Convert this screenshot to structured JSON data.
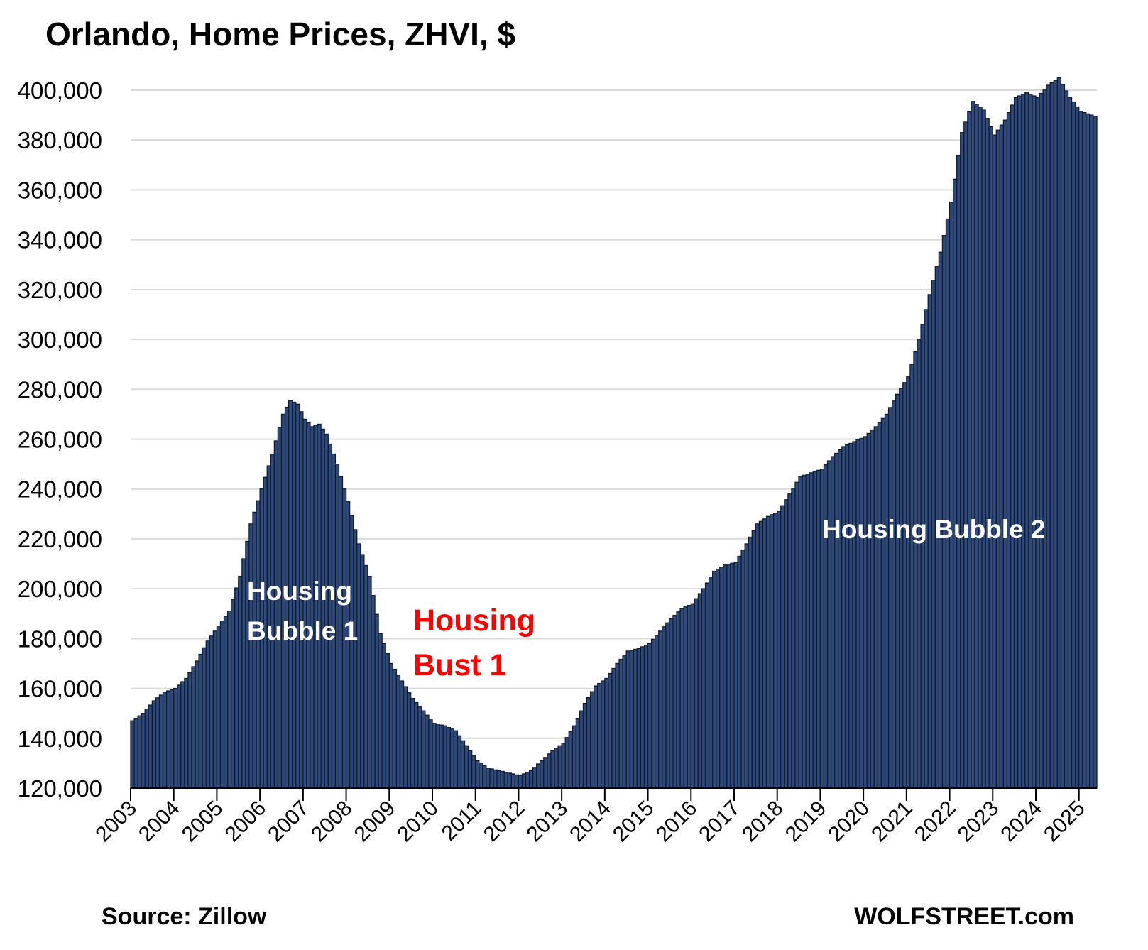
{
  "colors": {
    "bar_fill": "#2e4a7d",
    "bar_edge": "#141c2c",
    "grid": "#d9d9d9",
    "axis": "#000000",
    "annotation_bubble": "#ffffff",
    "annotation_bust": "#ff0000"
  },
  "chart_data": {
    "type": "bar",
    "title": "Orlando, Home Prices, ZHVI, $",
    "xlabel": "",
    "ylabel": "",
    "ylim": [
      120000,
      400000
    ],
    "y_ticks": [
      120000,
      140000,
      160000,
      180000,
      200000,
      220000,
      240000,
      260000,
      280000,
      300000,
      320000,
      340000,
      360000,
      380000,
      400000
    ],
    "y_tick_labels": [
      "120,000",
      "140,000",
      "160,000",
      "180,000",
      "200,000",
      "220,000",
      "240,000",
      "260,000",
      "280,000",
      "300,000",
      "320,000",
      "340,000",
      "360,000",
      "380,000",
      "400,000"
    ],
    "x_tick_labels": [
      "2003",
      "2004",
      "2005",
      "2006",
      "2007",
      "2008",
      "2009",
      "2010",
      "2011",
      "2012",
      "2013",
      "2014",
      "2015",
      "2016",
      "2017",
      "2018",
      "2019",
      "2020",
      "2021",
      "2022",
      "2023",
      "2024",
      "2025"
    ],
    "grid": true,
    "frequency": "monthly",
    "start_period": "2003-01",
    "end_period": "2025-05",
    "anchors": [
      [
        "2003-01",
        147000
      ],
      [
        "2003-04",
        150000
      ],
      [
        "2003-07",
        155000
      ],
      [
        "2003-10",
        158500
      ],
      [
        "2004-01",
        160000
      ],
      [
        "2004-04",
        164000
      ],
      [
        "2004-07",
        171000
      ],
      [
        "2004-10",
        179000
      ],
      [
        "2005-01",
        185000
      ],
      [
        "2005-04",
        191000
      ],
      [
        "2005-07",
        205000
      ],
      [
        "2005-10",
        226000
      ],
      [
        "2006-01",
        240000
      ],
      [
        "2006-04",
        254000
      ],
      [
        "2006-07",
        270000
      ],
      [
        "2006-09",
        275500
      ],
      [
        "2006-11",
        274000
      ],
      [
        "2007-01",
        268000
      ],
      [
        "2007-03",
        265000
      ],
      [
        "2007-05",
        266000
      ],
      [
        "2007-07",
        262000
      ],
      [
        "2007-10",
        250000
      ],
      [
        "2008-01",
        235000
      ],
      [
        "2008-04",
        218000
      ],
      [
        "2008-07",
        205000
      ],
      [
        "2008-10",
        182000
      ],
      [
        "2009-01",
        170000
      ],
      [
        "2009-04",
        163000
      ],
      [
        "2009-07",
        156000
      ],
      [
        "2009-10",
        151000
      ],
      [
        "2010-01",
        146000
      ],
      [
        "2010-04",
        145000
      ],
      [
        "2010-07",
        143000
      ],
      [
        "2010-10",
        137000
      ],
      [
        "2011-01",
        131000
      ],
      [
        "2011-04",
        128000
      ],
      [
        "2011-07",
        127000
      ],
      [
        "2011-10",
        126000
      ],
      [
        "2012-01",
        125000
      ],
      [
        "2012-04",
        127000
      ],
      [
        "2012-07",
        131000
      ],
      [
        "2012-10",
        135000
      ],
      [
        "2013-01",
        138000
      ],
      [
        "2013-04",
        145000
      ],
      [
        "2013-07",
        154000
      ],
      [
        "2013-10",
        161000
      ],
      [
        "2014-01",
        164000
      ],
      [
        "2014-04",
        170000
      ],
      [
        "2014-07",
        175000
      ],
      [
        "2014-10",
        176000
      ],
      [
        "2015-01",
        178000
      ],
      [
        "2015-04",
        183000
      ],
      [
        "2015-07",
        188000
      ],
      [
        "2015-10",
        192000
      ],
      [
        "2016-01",
        194000
      ],
      [
        "2016-04",
        200000
      ],
      [
        "2016-07",
        207000
      ],
      [
        "2016-10",
        209500
      ],
      [
        "2017-01",
        210500
      ],
      [
        "2017-04",
        218000
      ],
      [
        "2017-07",
        226000
      ],
      [
        "2017-10",
        229000
      ],
      [
        "2018-01",
        231000
      ],
      [
        "2018-04",
        238000
      ],
      [
        "2018-07",
        245000
      ],
      [
        "2018-10",
        246500
      ],
      [
        "2019-01",
        248000
      ],
      [
        "2019-04",
        253000
      ],
      [
        "2019-07",
        257000
      ],
      [
        "2019-10",
        259000
      ],
      [
        "2020-01",
        261000
      ],
      [
        "2020-04",
        265000
      ],
      [
        "2020-07",
        270000
      ],
      [
        "2020-10",
        278000
      ],
      [
        "2021-01",
        285000
      ],
      [
        "2021-04",
        300000
      ],
      [
        "2021-07",
        318000
      ],
      [
        "2021-10",
        335000
      ],
      [
        "2022-01",
        355000
      ],
      [
        "2022-04",
        383000
      ],
      [
        "2022-07",
        395500
      ],
      [
        "2022-10",
        392000
      ],
      [
        "2023-01",
        382000
      ],
      [
        "2023-04",
        388000
      ],
      [
        "2023-07",
        397000
      ],
      [
        "2023-10",
        399000
      ],
      [
        "2024-01",
        397000
      ],
      [
        "2024-04",
        402000
      ],
      [
        "2024-07",
        405000
      ],
      [
        "2024-10",
        397000
      ],
      [
        "2025-01",
        391500
      ],
      [
        "2025-05",
        389500
      ]
    ],
    "annotations": [
      {
        "lines": [
          "Housing",
          "Bubble 1"
        ],
        "style": "bubble"
      },
      {
        "lines": [
          "Housing",
          "Bust 1"
        ],
        "style": "bust"
      },
      {
        "lines": [
          "Housing Bubble 2"
        ],
        "style": "bubble"
      }
    ],
    "source": "Source: Zillow",
    "brand": "WOLFSTREET.com"
  }
}
